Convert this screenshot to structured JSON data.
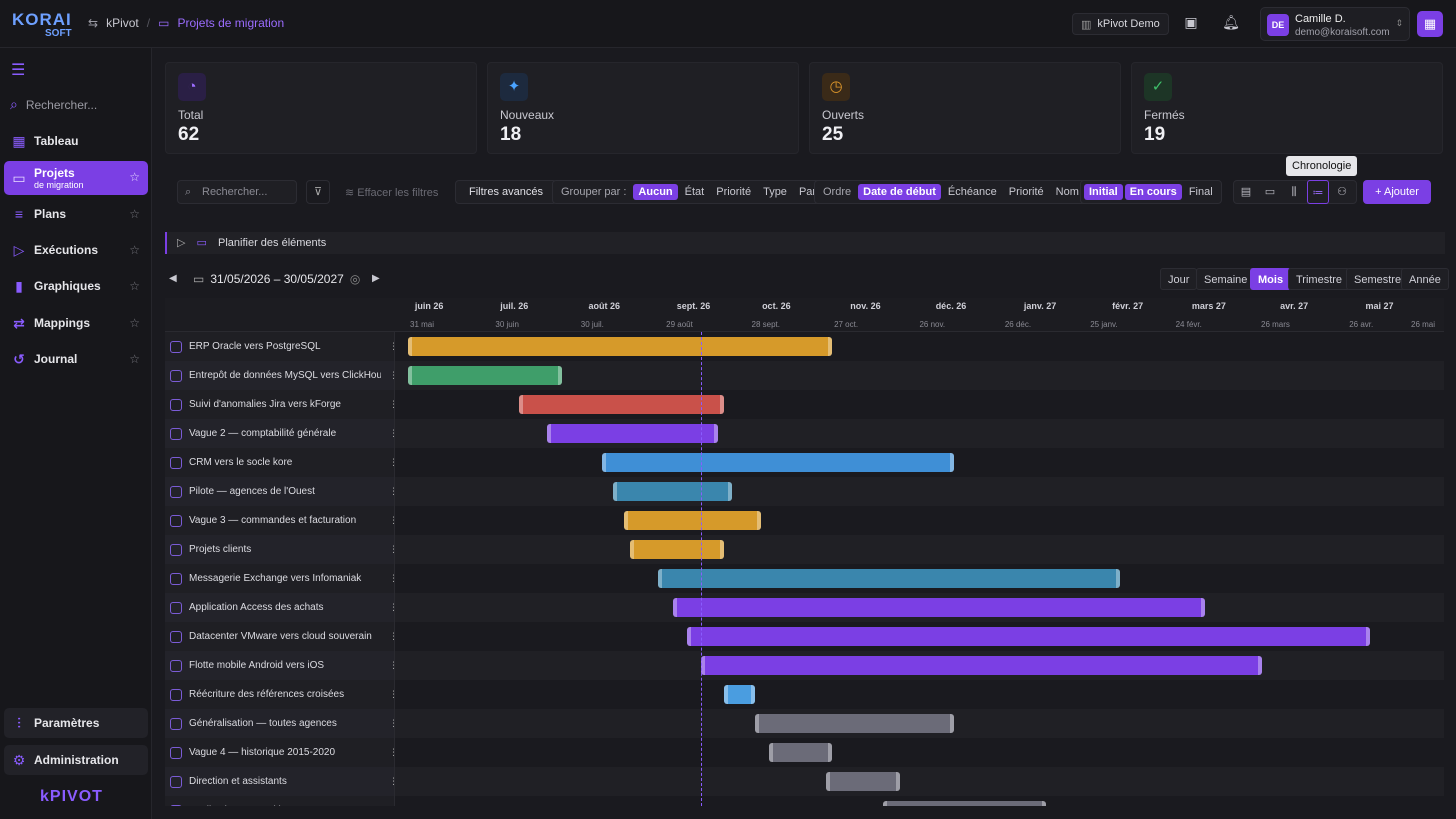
{
  "topbar": {
    "logo_top": "KORAI",
    "logo_bottom": "SOFT",
    "breadcrumb_root": "kPivot",
    "breadcrumb_current": "Projets de migration",
    "workspace": "kPivot Demo",
    "user_initials": "DE",
    "user_name": "Camille D.",
    "user_email": "demo@koraisoft.com"
  },
  "sidebar": {
    "search_placeholder": "Rechercher...",
    "items": [
      {
        "label": "Tableau",
        "icon": "grid-icon"
      },
      {
        "label": "Projets",
        "sub": "de migration",
        "icon": "folder-icon"
      },
      {
        "label": "Plans",
        "icon": "list-icon"
      },
      {
        "label": "Exécutions",
        "icon": "play-icon"
      },
      {
        "label": "Graphiques",
        "icon": "chart-icon"
      },
      {
        "label": "Mappings",
        "icon": "mapping-icon"
      },
      {
        "label": "Journal",
        "icon": "history-icon"
      }
    ],
    "settings": "Paramètres",
    "admin": "Administration",
    "brand": "kPIVOT"
  },
  "stats": [
    {
      "label": "Total",
      "value": "62",
      "icon": "gauge-icon",
      "color": "#7b3fe4"
    },
    {
      "label": "Nouveaux",
      "value": "18",
      "icon": "sparkle-icon",
      "color": "#4aa3ff"
    },
    {
      "label": "Ouverts",
      "value": "25",
      "icon": "clock-icon",
      "color": "#e0982b"
    },
    {
      "label": "Fermés",
      "value": "19",
      "icon": "check-icon",
      "color": "#3fbf6a"
    }
  ],
  "tooltip": "Chronologie",
  "toolbar": {
    "search_placeholder": "Rechercher...",
    "clear_filters": "Effacer les filtres",
    "advanced_filters": "Filtres avancés",
    "group_label": "Grouper par :",
    "group_options": [
      "Aucun",
      "État",
      "Priorité",
      "Type",
      "Parent"
    ],
    "order_label": "Ordre",
    "order_options": [
      "Date de début",
      "Échéance",
      "Priorité",
      "Nom"
    ],
    "state_options": [
      "Initial",
      "En cours",
      "Final"
    ],
    "add": "Ajouter"
  },
  "plan_row": "Planifier des éléments",
  "timeline": {
    "range": "31/05/2026 – 30/05/2027",
    "zooms": [
      "Jour",
      "Semaine",
      "Mois",
      "Trimestre",
      "Semestre",
      "Année"
    ],
    "months": [
      "juin 26",
      "juil. 26",
      "août 26",
      "sept. 26",
      "oct. 26",
      "nov. 26",
      "déc. 26",
      "janv. 27",
      "févr. 27",
      "mars 27",
      "avr. 27",
      "mai 27"
    ],
    "days": [
      "31 mai",
      "30 juin",
      "30 juil.",
      "29 août",
      "28 sept.",
      "27 oct.",
      "26 nov.",
      "26 déc.",
      "25 janv.",
      "24 févr.",
      "26 mars",
      "26 avr.",
      "26 mai"
    ]
  },
  "chart_data": {
    "type": "gantt",
    "x_range": [
      "2026-05-31",
      "2027-05-30"
    ],
    "today": "2026-09-11",
    "tasks": [
      {
        "name": "ERP Oracle vers PostgreSQL",
        "start": "2026-05-31",
        "end": "2026-10-27",
        "color": "#d69a2a"
      },
      {
        "name": "Entrepôt de données MySQL vers ClickHouse",
        "start": "2026-05-31",
        "end": "2026-07-24",
        "color": "#3f9e6a"
      },
      {
        "name": "Suivi d'anomalies Jira vers kForge",
        "start": "2026-07-09",
        "end": "2026-09-19",
        "color": "#c9514a"
      },
      {
        "name": "Vague 2 — comptabilité générale",
        "start": "2026-07-19",
        "end": "2026-09-17",
        "color": "#7b3fe4"
      },
      {
        "name": "CRM vers le socle kore",
        "start": "2026-08-07",
        "end": "2026-12-09",
        "color": "#3f8fd6"
      },
      {
        "name": "Pilote — agences de l'Ouest",
        "start": "2026-08-11",
        "end": "2026-09-22",
        "color": "#3a86ad"
      },
      {
        "name": "Vague 3 — commandes et facturation",
        "start": "2026-08-15",
        "end": "2026-10-02",
        "color": "#d69a2a"
      },
      {
        "name": "Projets clients",
        "start": "2026-08-17",
        "end": "2026-09-19",
        "color": "#d69a2a"
      },
      {
        "name": "Messagerie Exchange vers Infomaniak",
        "start": "2026-08-27",
        "end": "2027-02-05",
        "color": "#3a86ad"
      },
      {
        "name": "Application Access des achats",
        "start": "2026-09-01",
        "end": "2027-03-07",
        "color": "#7b3fe4"
      },
      {
        "name": "Datacenter VMware vers cloud souverain",
        "start": "2026-09-06",
        "end": "2027-05-04",
        "color": "#7b3fe4"
      },
      {
        "name": "Flotte mobile Android vers iOS",
        "start": "2026-09-11",
        "end": "2027-03-27",
        "color": "#7b3fe4"
      },
      {
        "name": "Réécriture des références croisées",
        "start": "2026-09-19",
        "end": "2026-09-30",
        "color": "#4a9de0"
      },
      {
        "name": "Généralisation — toutes agences",
        "start": "2026-09-30",
        "end": "2026-12-09",
        "color": "#6b6b78"
      },
      {
        "name": "Vague 4 — historique 2015-2020",
        "start": "2026-10-05",
        "end": "2026-10-27",
        "color": "#6b6b78"
      },
      {
        "name": "Direction et assistants",
        "start": "2026-10-25",
        "end": "2026-11-20",
        "color": "#6b6b78"
      },
      {
        "name": "Applications non critiques",
        "start": "2026-11-14",
        "end": "2027-01-10",
        "color": "#6b6b78"
      }
    ]
  }
}
